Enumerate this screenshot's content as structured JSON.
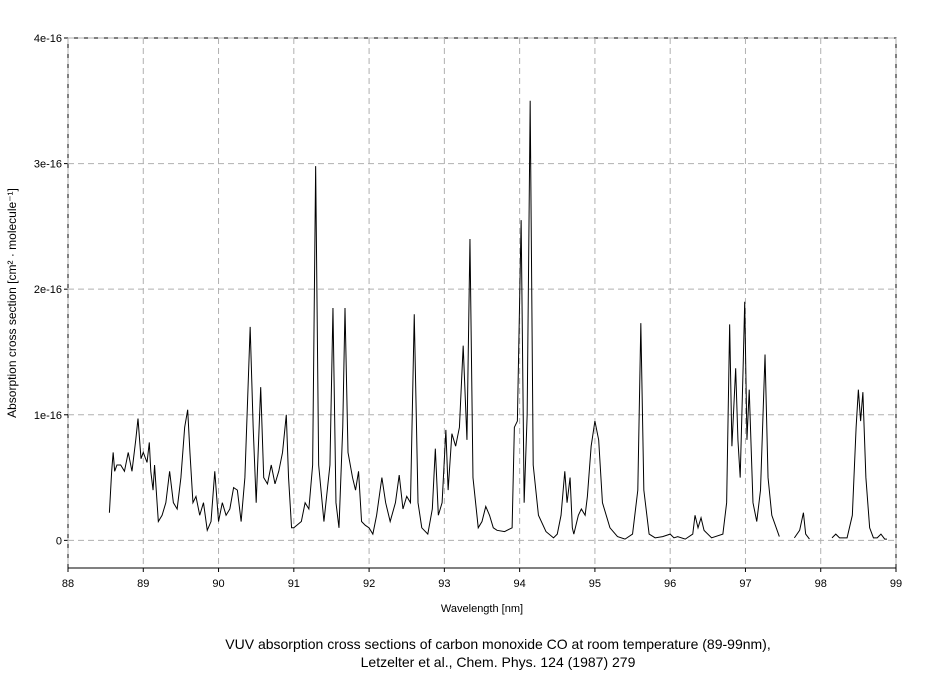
{
  "chart_data": {
    "type": "line",
    "xlabel": "Wavelength [nm]",
    "ylabel": "Absorption cross section [cm² · molecule⁻¹]",
    "caption": [
      "VUV absorption cross sections of carbon monoxide CO at room temperature (89-99nm),",
      "Letzelter et al.,  Chem. Phys. 124 (1987) 279"
    ],
    "color": "#000000",
    "grid": true,
    "xlim": [
      88,
      99
    ],
    "xticks": [
      88,
      89,
      90,
      91,
      92,
      93,
      94,
      95,
      96,
      97,
      98,
      99
    ],
    "ylim": [
      -2.2e-17,
      4e-16
    ],
    "yticks": [
      0,
      1e-16,
      2e-16,
      3e-16,
      4e-16
    ],
    "x": [
      88.55,
      88.58,
      88.6,
      88.62,
      88.65,
      88.7,
      88.75,
      88.8,
      88.85,
      88.9,
      88.93,
      88.97,
      89.0,
      89.05,
      89.08,
      89.1,
      89.13,
      89.15,
      89.2,
      89.25,
      89.3,
      89.35,
      89.4,
      89.45,
      89.5,
      89.55,
      89.59,
      89.62,
      89.66,
      89.7,
      89.75,
      89.8,
      89.85,
      89.9,
      89.95,
      90.0,
      90.05,
      90.1,
      90.15,
      90.2,
      90.25,
      90.3,
      90.35,
      90.42,
      90.46,
      90.5,
      90.56,
      90.6,
      90.65,
      90.7,
      90.75,
      90.8,
      90.85,
      90.9,
      90.93,
      90.97,
      91.0,
      91.1,
      91.15,
      91.2,
      91.25,
      91.29,
      91.33,
      91.4,
      91.48,
      91.52,
      91.56,
      91.6,
      91.65,
      91.68,
      91.72,
      91.78,
      91.82,
      91.86,
      91.9,
      91.95,
      92.0,
      92.05,
      92.1,
      92.17,
      92.22,
      92.28,
      92.35,
      92.4,
      92.45,
      92.5,
      92.55,
      92.6,
      92.65,
      92.7,
      92.78,
      92.84,
      92.88,
      92.92,
      92.97,
      93.02,
      93.05,
      93.1,
      93.15,
      93.2,
      93.25,
      93.3,
      93.34,
      93.38,
      93.45,
      93.5,
      93.55,
      93.6,
      93.65,
      93.7,
      93.8,
      93.9,
      93.93,
      93.97,
      94.02,
      94.06,
      94.1,
      94.14,
      94.18,
      94.25,
      94.35,
      94.45,
      94.5,
      94.55,
      94.6,
      94.63,
      94.67,
      94.7,
      94.72,
      94.78,
      94.82,
      94.87,
      94.9,
      94.95,
      95.0,
      95.05,
      95.1,
      95.2,
      95.3,
      95.4,
      95.5,
      95.57,
      95.61,
      95.65,
      95.72,
      95.8,
      95.9,
      96.0,
      96.05,
      96.1,
      96.2,
      96.3,
      96.33,
      96.37,
      96.41,
      96.45,
      96.55,
      96.7,
      96.75,
      96.79,
      96.82,
      96.87,
      96.9,
      96.93,
      96.97,
      96.99,
      97.02,
      97.05,
      97.1,
      97.15,
      97.2,
      97.26,
      97.3,
      97.35,
      97.45,
      97.55,
      97.65,
      97.72,
      97.77,
      97.8,
      97.85,
      98.0,
      98.15,
      98.2,
      98.25,
      98.35,
      98.42,
      98.47,
      98.5,
      98.53,
      98.56,
      98.6,
      98.65,
      98.7,
      98.75,
      98.8,
      98.85,
      98.88
    ],
    "values": [
      2.2e-17,
      5.5e-17,
      7e-17,
      5.5e-17,
      6e-17,
      6e-17,
      5.5e-17,
      7e-17,
      5.5e-17,
      8e-17,
      9.7e-17,
      6.5e-17,
      7e-17,
      6.2e-17,
      7.8e-17,
      5.5e-17,
      4e-17,
      6e-17,
      1.5e-17,
      2e-17,
      3e-17,
      5.5e-17,
      3e-17,
      2.5e-17,
      5e-17,
      9e-17,
      1.04e-16,
      7e-17,
      3e-17,
      3.5e-17,
      2e-17,
      3e-17,
      8e-18,
      1.5e-17,
      5.5e-17,
      1.5e-17,
      3e-17,
      2e-17,
      2.5e-17,
      4.2e-17,
      4e-17,
      1.5e-17,
      5e-17,
      1.7e-16,
      9e-17,
      3e-17,
      1.22e-16,
      5e-17,
      4.5e-17,
      6e-17,
      4.5e-17,
      5.5e-17,
      7e-17,
      1e-16,
      5e-17,
      1e-17,
      1e-17,
      1.5e-17,
      3e-17,
      2.5e-17,
      6e-17,
      2.98e-16,
      6e-17,
      1.5e-17,
      6e-17,
      1.85e-16,
      3e-17,
      1e-17,
      9e-17,
      1.85e-16,
      7e-17,
      5e-17,
      4e-17,
      5.5e-17,
      1.5e-17,
      1.2e-17,
      1e-17,
      5e-18,
      2e-17,
      5e-17,
      3e-17,
      1.5e-17,
      3e-17,
      5.2e-17,
      2.5e-17,
      3.5e-17,
      3e-17,
      1.8e-16,
      3e-17,
      1e-17,
      5e-18,
      2.5e-17,
      7.3e-17,
      2e-17,
      3e-17,
      8.8e-17,
      4e-17,
      8.5e-17,
      7.5e-17,
      9e-17,
      1.55e-16,
      8e-17,
      2.4e-16,
      5e-17,
      1e-17,
      1.5e-17,
      2.7e-17,
      2e-17,
      1e-17,
      8e-18,
      7e-18,
      1e-17,
      9e-17,
      9.5e-17,
      2.55e-16,
      3e-17,
      1e-16,
      3.5e-16,
      6e-17,
      2e-17,
      7e-18,
      2e-18,
      5e-18,
      2e-17,
      5.5e-17,
      3e-17,
      5e-17,
      1e-17,
      5e-18,
      2e-17,
      2.5e-17,
      2e-17,
      3.5e-17,
      7.5e-17,
      9.5e-17,
      8e-17,
      3e-17,
      1e-17,
      3e-18,
      1e-18,
      5e-18,
      4e-17,
      1.73e-16,
      4e-17,
      5e-18,
      2e-18,
      3e-18,
      5e-18,
      2e-18,
      3e-18,
      1e-18,
      5e-18,
      2e-17,
      1e-17,
      1.8e-17,
      8e-18,
      2e-18,
      5e-18,
      3e-17,
      1.72e-16,
      7.5e-17,
      1.37e-16,
      8e-17,
      5e-17,
      1.4e-16,
      1.9e-16,
      8e-17,
      1.2e-16,
      3e-17,
      1.5e-17,
      4e-17,
      1.48e-16,
      5e-17,
      2e-17,
      3e-18,
      null,
      2e-18,
      8e-18,
      2.2e-17,
      5e-18,
      1e-18,
      null,
      2e-18,
      5e-18,
      2e-18,
      2e-18,
      2e-17,
      9e-17,
      1.2e-16,
      9.5e-17,
      1.18e-16,
      5e-17,
      1e-17,
      2e-18,
      2e-18,
      5e-18,
      1e-18,
      1e-18
    ]
  }
}
